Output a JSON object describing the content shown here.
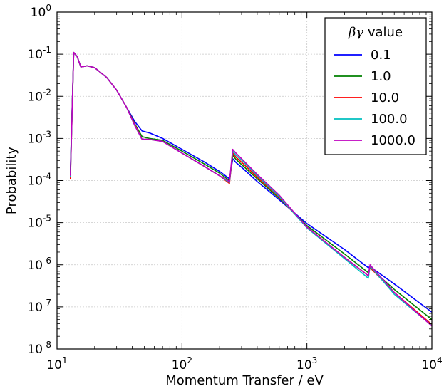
{
  "chart_data": {
    "type": "line",
    "xlabel": "Momentum Transfer / eV",
    "ylabel": "Probability",
    "x_scale": "log",
    "y_scale": "log",
    "xlim": [
      10,
      10000
    ],
    "ylim": [
      1e-08,
      1
    ],
    "grid": true,
    "x_ticks": [
      {
        "base": "10",
        "exp": "1",
        "value": 10
      },
      {
        "base": "10",
        "exp": "2",
        "value": 100
      },
      {
        "base": "10",
        "exp": "3",
        "value": 1000
      },
      {
        "base": "10",
        "exp": "4",
        "value": 10000
      }
    ],
    "y_ticks": [
      {
        "base": "10",
        "exp": "0",
        "value": 1
      },
      {
        "base": "10",
        "exp": "-1",
        "value": 0.1
      },
      {
        "base": "10",
        "exp": "-2",
        "value": 0.01
      },
      {
        "base": "10",
        "exp": "-3",
        "value": 0.001
      },
      {
        "base": "10",
        "exp": "-4",
        "value": 0.0001
      },
      {
        "base": "10",
        "exp": "-5",
        "value": 1e-05
      },
      {
        "base": "10",
        "exp": "-6",
        "value": 1e-06
      },
      {
        "base": "10",
        "exp": "-7",
        "value": 1e-07
      },
      {
        "base": "10",
        "exp": "-8",
        "value": 1e-08
      }
    ],
    "legend": {
      "title_symbol": "βγ",
      "title_text": " value",
      "placement": "top-right"
    },
    "series": [
      {
        "name": "0.1",
        "color": "#0000ff",
        "points": [
          [
            12.8,
            0.00018
          ],
          [
            13.6,
            0.11
          ],
          [
            14.5,
            0.088
          ],
          [
            15.5,
            0.05
          ],
          [
            17.5,
            0.053
          ],
          [
            20,
            0.048
          ],
          [
            25,
            0.028
          ],
          [
            30,
            0.014
          ],
          [
            36,
            0.0055
          ],
          [
            42,
            0.0025
          ],
          [
            48,
            0.0015
          ],
          [
            55,
            0.00135
          ],
          [
            70,
            0.001
          ],
          [
            100,
            0.00055
          ],
          [
            150,
            0.00028
          ],
          [
            200,
            0.000165
          ],
          [
            240,
            0.00011
          ],
          [
            255,
            0.00033
          ],
          [
            270,
            0.00027
          ],
          [
            310,
            0.00019
          ],
          [
            400,
            9.5e-05
          ],
          [
            600,
            3.5e-05
          ],
          [
            1000,
            9.5e-06
          ],
          [
            2000,
            2.3e-06
          ],
          [
            3100,
            8.5e-07
          ],
          [
            3200,
            9.2e-07
          ],
          [
            3350,
            8.2e-07
          ],
          [
            5000,
            3.5e-07
          ],
          [
            10000,
            7.5e-08
          ]
        ]
      },
      {
        "name": "1.0",
        "color": "#008000",
        "points": [
          [
            12.8,
            0.00015
          ],
          [
            13.6,
            0.11
          ],
          [
            14.5,
            0.088
          ],
          [
            15.5,
            0.05
          ],
          [
            17.5,
            0.053
          ],
          [
            20,
            0.048
          ],
          [
            25,
            0.028
          ],
          [
            30,
            0.014
          ],
          [
            36,
            0.0055
          ],
          [
            42,
            0.0022
          ],
          [
            48,
            0.0011
          ],
          [
            55,
            0.001
          ],
          [
            70,
            0.0009
          ],
          [
            100,
            0.0005
          ],
          [
            150,
            0.00025
          ],
          [
            200,
            0.00015
          ],
          [
            240,
            0.0001
          ],
          [
            255,
            0.0004
          ],
          [
            270,
            0.00032
          ],
          [
            310,
            0.00022
          ],
          [
            400,
            0.00011
          ],
          [
            600,
            3.8e-05
          ],
          [
            1000,
            8.5e-06
          ],
          [
            2000,
            1.8e-06
          ],
          [
            3100,
            6.5e-07
          ],
          [
            3200,
            8.5e-07
          ],
          [
            3350,
            7.5e-07
          ],
          [
            5000,
            2.6e-07
          ],
          [
            10000,
            5e-08
          ]
        ]
      },
      {
        "name": "10.0",
        "color": "#ff0000",
        "points": [
          [
            12.8,
            0.00011
          ],
          [
            13.6,
            0.11
          ],
          [
            14.5,
            0.088
          ],
          [
            15.5,
            0.05
          ],
          [
            17.5,
            0.053
          ],
          [
            20,
            0.048
          ],
          [
            25,
            0.028
          ],
          [
            30,
            0.014
          ],
          [
            36,
            0.0055
          ],
          [
            42,
            0.0021
          ],
          [
            48,
            0.00095
          ],
          [
            55,
            0.00095
          ],
          [
            70,
            0.00085
          ],
          [
            100,
            0.00045
          ],
          [
            150,
            0.00022
          ],
          [
            200,
            0.00013
          ],
          [
            240,
            8.5e-05
          ],
          [
            255,
            0.00045
          ],
          [
            270,
            0.00036
          ],
          [
            310,
            0.00025
          ],
          [
            400,
            0.00012
          ],
          [
            600,
            4e-05
          ],
          [
            1000,
            7.8e-06
          ],
          [
            2000,
            1.5e-06
          ],
          [
            3100,
            5.5e-07
          ],
          [
            3200,
            9e-07
          ],
          [
            3350,
            7.5e-07
          ],
          [
            5000,
            2.2e-07
          ],
          [
            10000,
            3.8e-08
          ]
        ]
      },
      {
        "name": "100.0",
        "color": "#00bfbf",
        "points": [
          [
            12.8,
            0.00012
          ],
          [
            13.6,
            0.11
          ],
          [
            14.5,
            0.088
          ],
          [
            15.5,
            0.05
          ],
          [
            17.5,
            0.053
          ],
          [
            20,
            0.048
          ],
          [
            25,
            0.028
          ],
          [
            30,
            0.014
          ],
          [
            36,
            0.0055
          ],
          [
            42,
            0.002
          ],
          [
            48,
            0.00095
          ],
          [
            55,
            0.00095
          ],
          [
            70,
            0.00085
          ],
          [
            100,
            0.00045
          ],
          [
            150,
            0.00022
          ],
          [
            200,
            0.00013
          ],
          [
            240,
            9e-05
          ],
          [
            255,
            0.0005
          ],
          [
            270,
            0.0004
          ],
          [
            310,
            0.00028
          ],
          [
            400,
            0.00013
          ],
          [
            600,
            4.2e-05
          ],
          [
            1000,
            7.5e-06
          ],
          [
            2000,
            1.4e-06
          ],
          [
            3100,
            4.8e-07
          ],
          [
            3200,
            9.5e-07
          ],
          [
            3350,
            8e-07
          ],
          [
            5000,
            2e-07
          ],
          [
            10000,
            3.6e-08
          ]
        ]
      },
      {
        "name": "1000.0",
        "color": "#bf00bf",
        "points": [
          [
            12.8,
            0.00013
          ],
          [
            13.6,
            0.11
          ],
          [
            14.5,
            0.088
          ],
          [
            15.5,
            0.05
          ],
          [
            17.5,
            0.053
          ],
          [
            20,
            0.048
          ],
          [
            25,
            0.028
          ],
          [
            30,
            0.014
          ],
          [
            36,
            0.0055
          ],
          [
            42,
            0.002
          ],
          [
            48,
            0.00095
          ],
          [
            55,
            0.00095
          ],
          [
            70,
            0.00085
          ],
          [
            100,
            0.00045
          ],
          [
            150,
            0.00022
          ],
          [
            200,
            0.00013
          ],
          [
            240,
            9.5e-05
          ],
          [
            255,
            0.00055
          ],
          [
            270,
            0.00045
          ],
          [
            310,
            0.0003
          ],
          [
            400,
            0.00014
          ],
          [
            600,
            4.5e-05
          ],
          [
            1000,
            7.8e-06
          ],
          [
            2000,
            1.5e-06
          ],
          [
            3100,
            5.5e-07
          ],
          [
            3200,
            1e-06
          ],
          [
            3350,
            8.5e-07
          ],
          [
            5000,
            2.2e-07
          ],
          [
            10000,
            3.5e-08
          ]
        ]
      }
    ]
  }
}
